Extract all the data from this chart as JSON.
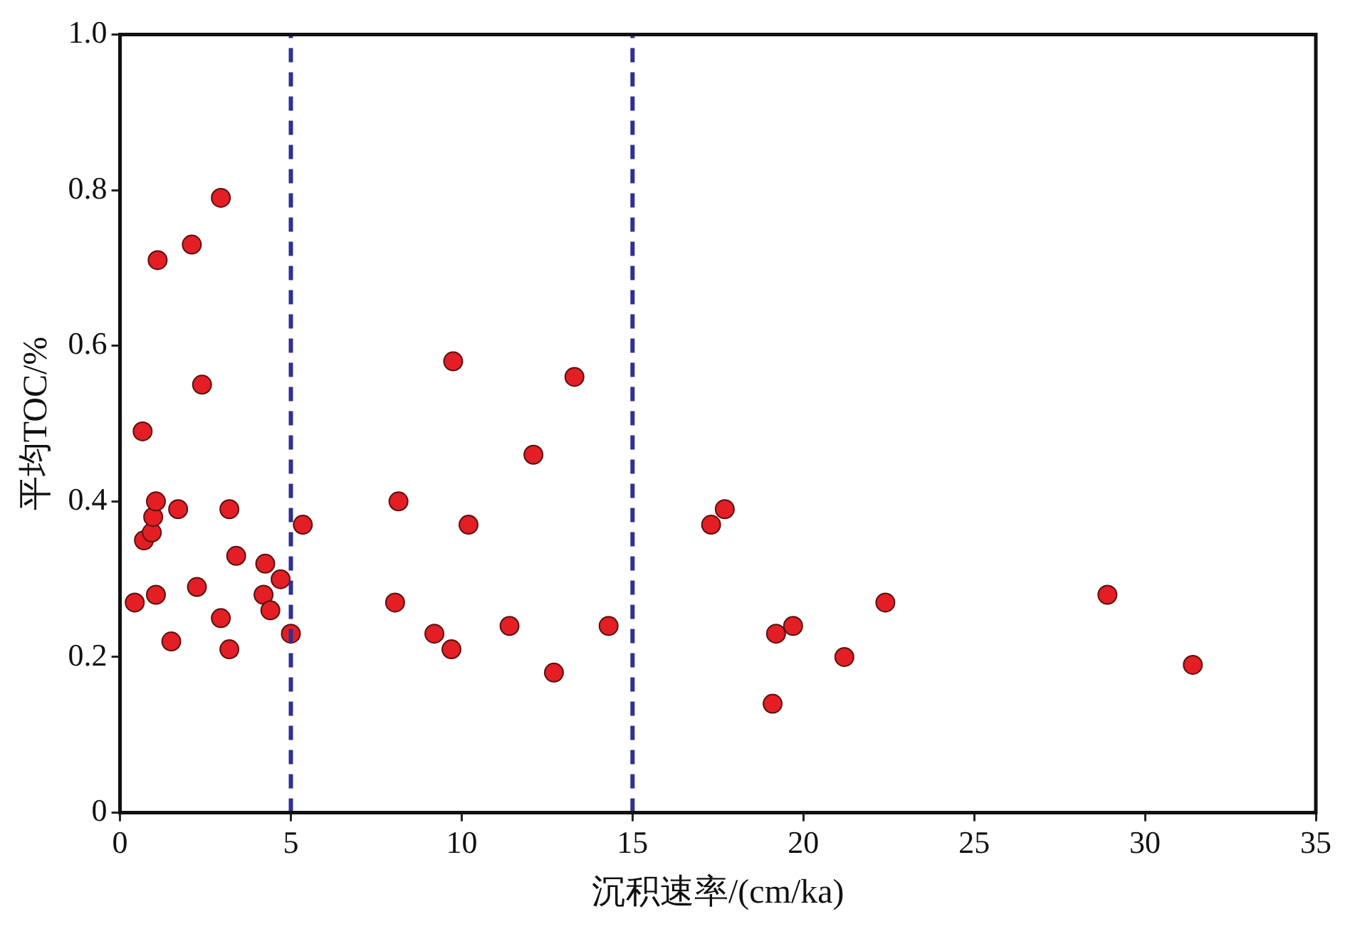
{
  "chart_data": {
    "type": "scatter",
    "xlabel": "沉积速率/(cm/ka)",
    "ylabel": "平均TOC/%",
    "x": [
      0.43,
      0.66,
      0.7,
      0.93,
      0.97,
      1.05,
      1.05,
      1.1,
      1.5,
      1.7,
      2.1,
      2.25,
      2.4,
      2.95,
      2.95,
      3.2,
      3.2,
      3.4,
      4.25,
      4.2,
      4.4,
      4.7,
      5.0,
      5.35,
      8.05,
      8.15,
      9.2,
      9.7,
      9.75,
      10.2,
      11.4,
      12.1,
      12.7,
      13.3,
      14.3,
      17.3,
      17.7,
      19.1,
      19.2,
      19.7,
      21.2,
      22.4,
      28.9,
      31.4
    ],
    "series": [
      {
        "color": "#e31e24",
        "values": [
          0.27,
          0.49,
          0.35,
          0.36,
          0.38,
          0.4,
          0.28,
          0.71,
          0.22,
          0.39,
          0.73,
          0.29,
          0.55,
          0.25,
          0.79,
          0.39,
          0.21,
          0.33,
          0.32,
          0.28,
          0.26,
          0.3,
          0.23,
          0.37,
          0.27,
          0.4,
          0.23,
          0.21,
          0.58,
          0.37,
          0.24,
          0.46,
          0.18,
          0.56,
          0.24,
          0.37,
          0.39,
          0.14,
          0.23,
          0.24,
          0.2,
          0.27,
          0.28,
          0.19
        ]
      }
    ],
    "xlim": [
      0,
      35
    ],
    "xticks": [
      0,
      5,
      10,
      15,
      20,
      25,
      30,
      35
    ],
    "ylim": [
      0,
      1
    ],
    "yticks": [
      0,
      0.2,
      0.4,
      0.6,
      0.8,
      {
        "value": 1,
        "label": "1.0"
      }
    ],
    "ref_lines": [
      {
        "axis": "x",
        "value": 5,
        "color": "#2e3192",
        "line_style": "dashed"
      },
      {
        "axis": "x",
        "value": 15,
        "color": "#2e3192",
        "line_style": "dashed"
      }
    ],
    "marker": "circle",
    "grid": false,
    "legend": false
  }
}
